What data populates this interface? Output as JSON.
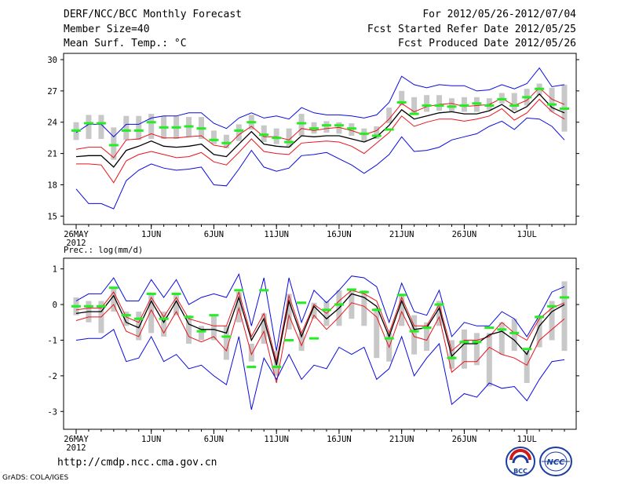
{
  "header": {
    "title": "DERF/NCC/BCC Monthly Forecast",
    "member_size": "Member Size=40",
    "variable": "Mean Surf. Temp.: °C",
    "forecast_range": "For 2012/05/26-2012/07/04",
    "started_refer": "Fcst Started Refer Date 2012/05/25",
    "produced": "Fcst Produced Date 2012/05/26"
  },
  "footer": {
    "url": "http://cmdp.ncc.cma.gov.cn",
    "credit": "GrADS: COLA/IGES"
  },
  "logos": {
    "bcc": "BCC",
    "ncc": "NCC"
  },
  "colors": {
    "median": "#000000",
    "inner": "#e8141c",
    "outer": "#0a0ae0",
    "box": "#c8c8c8",
    "obs": "#22ee22"
  },
  "chart_data": [
    {
      "type": "line",
      "name": "temperature",
      "title": "Mean Surf. Temp.: °C",
      "x": [
        1,
        2,
        3,
        4,
        5,
        6,
        7,
        8,
        9,
        10,
        11,
        12,
        13,
        14,
        15,
        16,
        17,
        18,
        19,
        20,
        21,
        22,
        23,
        24,
        25,
        26,
        27,
        28,
        29,
        30,
        31,
        32,
        33,
        34,
        35,
        36,
        37,
        38,
        39,
        40
      ],
      "xtick_labels": [
        {
          "x": 1,
          "label": "26MAY"
        },
        {
          "x": 7,
          "label": "1JUN"
        },
        {
          "x": 12,
          "label": "6JUN"
        },
        {
          "x": 17,
          "label": "11JUN"
        },
        {
          "x": 22,
          "label": "16JUN"
        },
        {
          "x": 27,
          "label": "21JUN"
        },
        {
          "x": 32,
          "label": "26JUN"
        },
        {
          "x": 37,
          "label": "1JUL"
        }
      ],
      "year_label": "2012",
      "yticks": [
        15,
        18,
        21,
        24,
        27,
        30
      ],
      "ylim": [
        14.2,
        30.6
      ],
      "series": [
        {
          "name": "max",
          "color": "outer",
          "values": [
            23.0,
            23.8,
            23.8,
            22.6,
            23.8,
            23.8,
            24.4,
            24.6,
            24.6,
            24.9,
            24.9,
            23.9,
            23.4,
            24.4,
            24.9,
            24.4,
            24.6,
            24.3,
            25.4,
            24.9,
            24.7,
            24.7,
            24.6,
            24.4,
            24.7,
            25.9,
            28.4,
            27.6,
            27.3,
            27.6,
            27.5,
            27.5,
            27.0,
            27.1,
            27.6,
            27.2,
            27.7,
            29.2,
            27.4,
            27.6
          ]
        },
        {
          "name": "p75",
          "color": "inner",
          "values": [
            21.4,
            21.6,
            21.6,
            20.6,
            22.3,
            22.4,
            22.9,
            22.5,
            22.5,
            22.6,
            22.7,
            21.8,
            21.6,
            22.8,
            23.6,
            22.6,
            22.6,
            22.3,
            23.4,
            23.2,
            23.4,
            23.5,
            23.2,
            22.8,
            23.2,
            24.3,
            25.8,
            25.0,
            25.5,
            25.7,
            25.8,
            25.5,
            25.6,
            25.7,
            26.3,
            25.6,
            26.1,
            27.3,
            26.2,
            25.7
          ]
        },
        {
          "name": "median",
          "color": "median",
          "values": [
            20.7,
            20.8,
            20.8,
            19.7,
            21.3,
            21.7,
            22.2,
            21.7,
            21.6,
            21.7,
            21.9,
            20.9,
            20.7,
            21.9,
            23.1,
            21.9,
            21.7,
            21.6,
            22.7,
            22.6,
            22.7,
            22.7,
            22.4,
            22.1,
            22.6,
            23.7,
            25.2,
            24.3,
            24.6,
            24.9,
            25.0,
            24.8,
            24.8,
            25.1,
            25.7,
            24.9,
            25.5,
            26.7,
            25.4,
            24.9
          ]
        },
        {
          "name": "p25",
          "color": "inner",
          "values": [
            20.0,
            20.0,
            19.9,
            18.2,
            20.3,
            20.9,
            21.2,
            20.9,
            20.6,
            20.7,
            21.1,
            20.2,
            19.9,
            21.1,
            22.4,
            21.2,
            21.0,
            20.9,
            22.0,
            22.1,
            22.2,
            22.1,
            21.7,
            21.0,
            22.0,
            23.0,
            24.6,
            23.6,
            24.0,
            24.3,
            24.3,
            24.1,
            24.3,
            24.6,
            25.3,
            24.2,
            24.9,
            26.2,
            25.0,
            24.3
          ]
        },
        {
          "name": "min",
          "color": "outer",
          "values": [
            17.6,
            16.2,
            16.2,
            15.7,
            18.4,
            19.4,
            20.0,
            19.6,
            19.4,
            19.5,
            19.7,
            18.0,
            17.9,
            19.5,
            21.3,
            19.7,
            19.3,
            19.6,
            20.8,
            20.9,
            21.1,
            20.5,
            19.9,
            19.1,
            19.9,
            20.9,
            22.6,
            21.2,
            21.3,
            21.6,
            22.3,
            22.6,
            22.9,
            23.6,
            24.1,
            23.3,
            24.4,
            24.3,
            23.6,
            22.3
          ]
        }
      ],
      "boxes": [
        [
          22.3,
          24.0
        ],
        [
          22.4,
          24.7
        ],
        [
          22.4,
          24.7
        ],
        [
          20.4,
          23.5
        ],
        [
          22.3,
          24.6
        ],
        [
          22.3,
          24.6
        ],
        [
          22.4,
          24.8
        ],
        [
          22.4,
          24.6
        ],
        [
          22.4,
          24.6
        ],
        [
          22.6,
          24.5
        ],
        [
          22.4,
          24.5
        ],
        [
          21.9,
          23.2
        ],
        [
          21.5,
          22.8
        ],
        [
          22.2,
          23.8
        ],
        [
          23.3,
          24.7
        ],
        [
          22.1,
          23.7
        ],
        [
          21.9,
          23.4
        ],
        [
          21.6,
          23.4
        ],
        [
          22.7,
          24.8
        ],
        [
          22.9,
          24.0
        ],
        [
          23.0,
          24.1
        ],
        [
          22.9,
          24.0
        ],
        [
          22.7,
          23.9
        ],
        [
          22.1,
          23.4
        ],
        [
          22.4,
          23.6
        ],
        [
          23.9,
          25.4
        ],
        [
          25.6,
          27.0
        ],
        [
          24.8,
          26.4
        ],
        [
          25.0,
          26.6
        ],
        [
          25.1,
          26.6
        ],
        [
          25.0,
          26.3
        ],
        [
          25.0,
          26.4
        ],
        [
          25.0,
          26.4
        ],
        [
          25.2,
          26.3
        ],
        [
          25.8,
          26.8
        ],
        [
          25.1,
          26.8
        ],
        [
          25.6,
          27.2
        ],
        [
          26.6,
          27.7
        ],
        [
          25.0,
          27.3
        ],
        [
          23.1,
          27.6
        ]
      ],
      "observed": [
        23.2,
        23.9,
        23.9,
        21.8,
        23.2,
        23.2,
        24.0,
        23.5,
        23.5,
        23.6,
        23.4,
        22.3,
        22.0,
        23.2,
        24.0,
        22.8,
        22.5,
        22.1,
        23.9,
        23.4,
        23.7,
        23.7,
        23.4,
        22.9,
        22.7,
        23.3,
        25.9,
        24.8,
        25.6,
        25.6,
        25.5,
        25.6,
        25.8,
        25.6,
        26.2,
        25.6,
        26.4,
        27.2,
        25.7,
        25.3
      ]
    },
    {
      "type": "line",
      "name": "precipitation",
      "title": "Prec.: log(mm/d)",
      "x": [
        1,
        2,
        3,
        4,
        5,
        6,
        7,
        8,
        9,
        10,
        11,
        12,
        13,
        14,
        15,
        16,
        17,
        18,
        19,
        20,
        21,
        22,
        23,
        24,
        25,
        26,
        27,
        28,
        29,
        30,
        31,
        32,
        33,
        34,
        35,
        36,
        37,
        38,
        39,
        40
      ],
      "xtick_labels": [
        {
          "x": 1,
          "label": "26MAY"
        },
        {
          "x": 7,
          "label": "1JUN"
        },
        {
          "x": 12,
          "label": "6JUN"
        },
        {
          "x": 17,
          "label": "11JUN"
        },
        {
          "x": 22,
          "label": "16JUN"
        },
        {
          "x": 27,
          "label": "21JUN"
        },
        {
          "x": 32,
          "label": "26JUN"
        },
        {
          "x": 37,
          "label": "1JUL"
        }
      ],
      "year_label": "2012",
      "yticks": [
        -3,
        -2,
        -1,
        0,
        1
      ],
      "ylim": [
        -3.5,
        1.3
      ],
      "series": [
        {
          "name": "max",
          "color": "outer",
          "values": [
            0.1,
            0.3,
            0.3,
            0.75,
            0.1,
            0.1,
            0.7,
            0.2,
            0.7,
            0.0,
            0.2,
            0.3,
            0.2,
            0.85,
            -0.6,
            0.75,
            -1.3,
            0.75,
            -0.5,
            0.4,
            0.05,
            0.4,
            0.8,
            0.75,
            0.5,
            -0.5,
            0.6,
            -0.2,
            -0.3,
            0.4,
            -0.9,
            -0.5,
            -0.6,
            -0.6,
            -0.2,
            -0.4,
            -0.9,
            -0.3,
            0.35,
            0.5
          ]
        },
        {
          "name": "p75",
          "color": "inner",
          "values": [
            -0.15,
            -0.1,
            -0.1,
            0.35,
            -0.35,
            -0.5,
            0.2,
            -0.35,
            0.2,
            -0.4,
            -0.5,
            -0.6,
            -0.6,
            0.35,
            -0.9,
            -0.25,
            -1.6,
            0.25,
            -0.8,
            0.0,
            -0.25,
            0.1,
            0.4,
            0.3,
            0.1,
            -0.8,
            0.2,
            -0.6,
            -0.6,
            0.0,
            -1.3,
            -1.0,
            -1.0,
            -0.9,
            -0.5,
            -0.8,
            -1.0,
            -0.4,
            -0.1,
            0.05
          ]
        },
        {
          "name": "median",
          "color": "median",
          "values": [
            -0.25,
            -0.2,
            -0.2,
            0.25,
            -0.5,
            -0.65,
            0.1,
            -0.5,
            0.1,
            -0.55,
            -0.7,
            -0.7,
            -0.8,
            0.2,
            -1.0,
            -0.4,
            -1.7,
            0.1,
            -0.9,
            -0.05,
            -0.4,
            -0.1,
            0.3,
            0.2,
            -0.05,
            -0.9,
            0.1,
            -0.7,
            -0.65,
            -0.1,
            -1.45,
            -1.1,
            -1.1,
            -0.85,
            -0.75,
            -1.0,
            -1.4,
            -0.6,
            -0.2,
            0.0
          ]
        },
        {
          "name": "p25",
          "color": "inner",
          "values": [
            -0.45,
            -0.35,
            -0.35,
            0.0,
            -0.75,
            -0.9,
            -0.15,
            -0.8,
            -0.2,
            -0.9,
            -1.05,
            -0.9,
            -1.3,
            -0.1,
            -1.4,
            -0.75,
            -2.2,
            -0.3,
            -1.15,
            -0.3,
            -0.7,
            -0.35,
            0.05,
            -0.05,
            -0.35,
            -1.2,
            -0.2,
            -0.9,
            -1.0,
            -0.35,
            -1.9,
            -1.6,
            -1.6,
            -1.2,
            -1.4,
            -1.5,
            -1.7,
            -1.0,
            -0.7,
            -0.4
          ]
        },
        {
          "name": "min",
          "color": "outer",
          "values": [
            -1.0,
            -0.95,
            -0.95,
            -0.7,
            -1.6,
            -1.5,
            -0.9,
            -1.6,
            -1.4,
            -1.8,
            -1.7,
            -2.0,
            -2.25,
            -0.9,
            -2.95,
            -1.5,
            -2.1,
            -1.4,
            -2.1,
            -1.7,
            -1.8,
            -1.2,
            -1.4,
            -1.2,
            -2.1,
            -1.8,
            -0.9,
            -2.0,
            -1.5,
            -1.1,
            -2.8,
            -2.5,
            -2.6,
            -2.2,
            -2.35,
            -2.3,
            -2.7,
            -2.1,
            -1.6,
            -1.55
          ]
        }
      ],
      "boxes": [
        [
          -0.3,
          0.2
        ],
        [
          -0.5,
          0.1
        ],
        [
          -0.8,
          0.1
        ],
        [
          -0.2,
          0.45
        ],
        [
          -0.6,
          -0.2
        ],
        [
          -1.0,
          -0.2
        ],
        [
          -0.8,
          0.3
        ],
        [
          -0.9,
          -0.2
        ],
        [
          -0.3,
          0.3
        ],
        [
          -1.1,
          -0.3
        ],
        [
          -1.0,
          -0.6
        ],
        [
          -1.0,
          -0.3
        ],
        [
          -1.55,
          -0.6
        ],
        [
          -0.5,
          0.35
        ],
        [
          -1.6,
          -1.1
        ],
        [
          -1.1,
          -0.25
        ],
        [
          -2.0,
          -1.3
        ],
        [
          -0.7,
          0.3
        ],
        [
          -1.3,
          -0.8
        ],
        [
          -0.4,
          0.05
        ],
        [
          -0.6,
          0.1
        ],
        [
          -0.6,
          0.4
        ],
        [
          -0.4,
          0.4
        ],
        [
          -0.6,
          0.4
        ],
        [
          -1.5,
          -0.1
        ],
        [
          -1.6,
          -0.8
        ],
        [
          -0.6,
          0.3
        ],
        [
          -1.4,
          -0.3
        ],
        [
          -1.3,
          -0.5
        ],
        [
          -0.6,
          0.1
        ],
        [
          -1.8,
          -1.0
        ],
        [
          -1.8,
          -0.7
        ],
        [
          -1.7,
          -0.8
        ],
        [
          -2.3,
          -0.8
        ],
        [
          -1.4,
          -0.5
        ],
        [
          -1.3,
          -0.4
        ],
        [
          -2.2,
          -1.3
        ],
        [
          -1.2,
          -0.3
        ],
        [
          -1.0,
          0.1
        ],
        [
          -1.3,
          0.65
        ]
      ],
      "observed": [
        -0.05,
        -0.05,
        -0.05,
        0.47,
        -0.3,
        -0.4,
        0.3,
        -0.4,
        0.3,
        -0.35,
        -0.75,
        -0.3,
        -0.9,
        0.4,
        -1.75,
        0.4,
        -1.75,
        -1.0,
        0.05,
        -0.95,
        -0.15,
        0.0,
        0.42,
        0.35,
        -0.15,
        -0.95,
        0.27,
        -0.75,
        -0.65,
        0.0,
        -1.5,
        -1.05,
        -1.05,
        -0.65,
        -0.7,
        -0.8,
        -1.25,
        -0.35,
        -0.05,
        0.2
      ]
    }
  ]
}
